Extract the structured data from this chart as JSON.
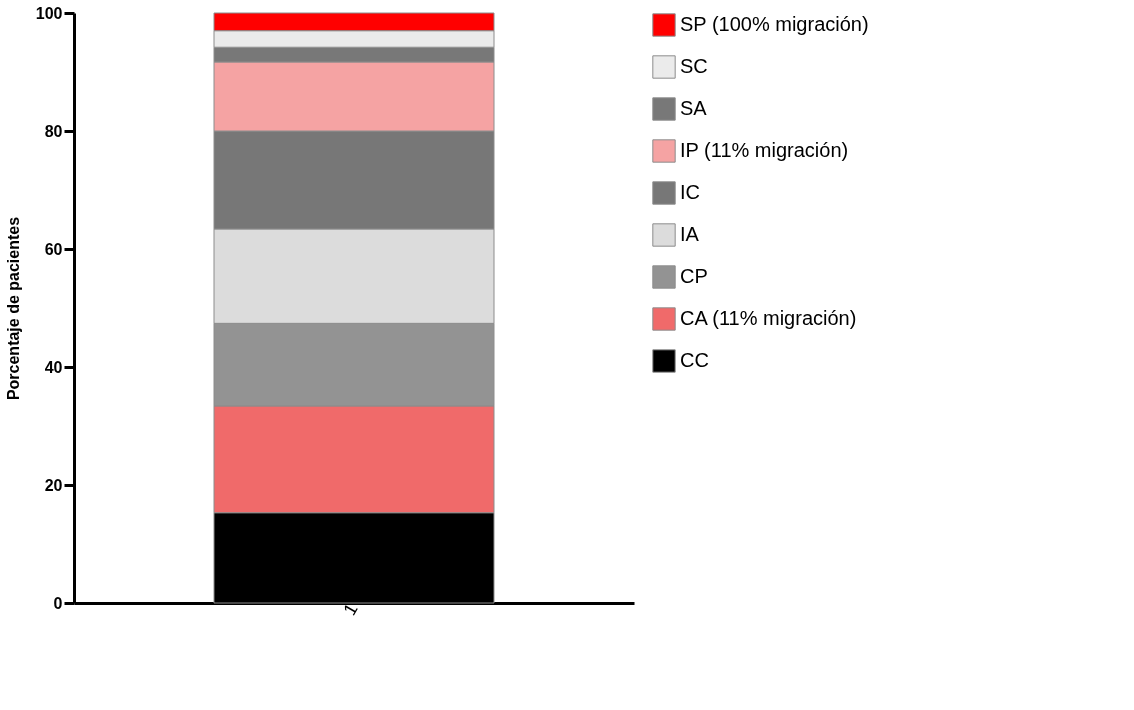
{
  "chart_data": {
    "type": "bar",
    "stacked": true,
    "ylabel": "Porcentaje de pacientes",
    "categories": [
      "1"
    ],
    "ylim": [
      0,
      100
    ],
    "yticks": [
      0,
      20,
      40,
      60,
      80,
      100
    ],
    "grid": false,
    "legend": "top right",
    "series": [
      {
        "name": "CC",
        "color": "#000000",
        "values": [
          15.3
        ]
      },
      {
        "name": "CA (11% migración)",
        "color": "#f06a6a",
        "values": [
          18.1
        ]
      },
      {
        "name": "CP",
        "color": "#939393",
        "values": [
          14.0
        ]
      },
      {
        "name": "IA",
        "color": "#dcdcdc",
        "values": [
          16.0
        ]
      },
      {
        "name": "IC",
        "color": "#777777",
        "values": [
          16.6
        ]
      },
      {
        "name": "IP (11% migración)",
        "color": "#f5a3a3",
        "values": [
          11.7
        ]
      },
      {
        "name": "SA",
        "color": "#787878",
        "values": [
          2.5
        ]
      },
      {
        "name": "SC",
        "color": "#ebebeb",
        "values": [
          2.8
        ]
      },
      {
        "name": "SP (100% migración)",
        "color": "#ff0000",
        "values": [
          3.0
        ]
      }
    ]
  }
}
